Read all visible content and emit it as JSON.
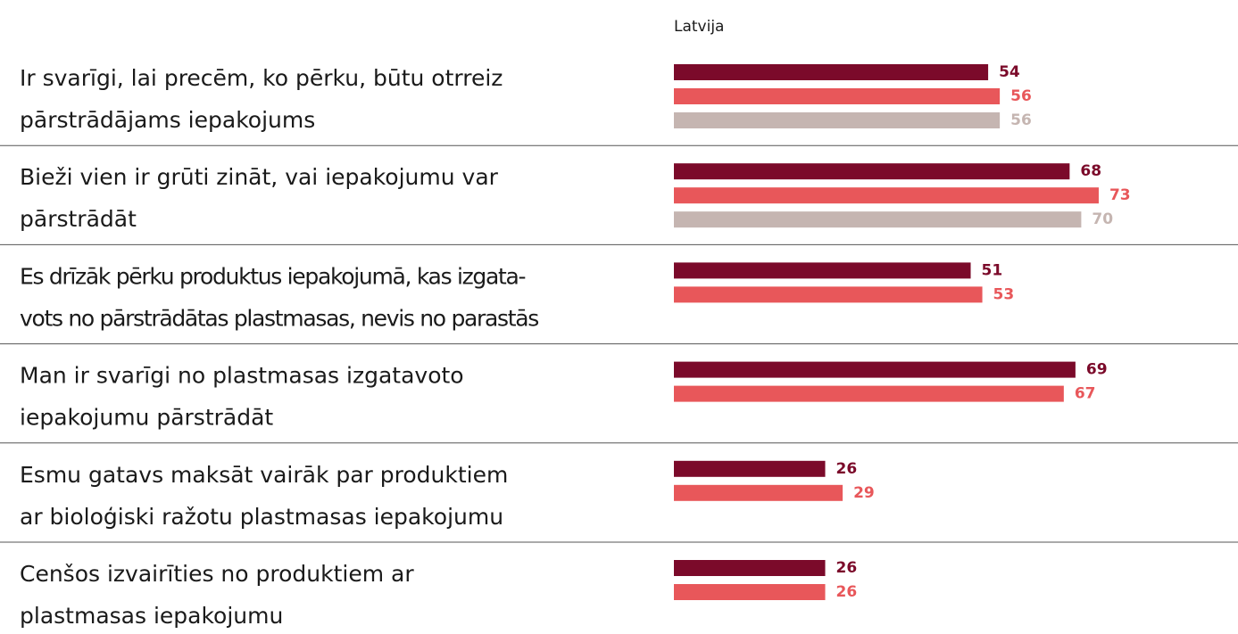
{
  "chart_data": {
    "type": "bar",
    "orientation": "horizontal",
    "subtitle": "Latvija",
    "categories": [
      [
        "Ir svarīgi, lai precēm, ko pērku, būtu otrreiz",
        "pārstrādājams iepakojums"
      ],
      [
        "Bieži vien ir grūti zināt, vai iepakojumu var",
        "pārstrādāt"
      ],
      [
        "Es drīzāk pērku produktus iepakojumā, kas izgata-",
        "vots no pārstrādātas plastmasas, nevis no parastās"
      ],
      [
        "Man ir svarīgi no plastmasas izgatavoto",
        "iepakojumu pārstrādāt"
      ],
      [
        "Esmu gatavs maksāt vairāk par produktiem",
        "ar bioloģiski ražotu plastmasas iepakojumu"
      ],
      [
        "Cenšos izvairīties no produktiem ar",
        "plastmasas iepakojumu"
      ]
    ],
    "series": [
      {
        "color": "#7b0a2a",
        "values": [
          54,
          68,
          51,
          69,
          26,
          26
        ]
      },
      {
        "color": "#e8575a",
        "values": [
          56,
          73,
          53,
          67,
          29,
          26
        ]
      },
      {
        "color": "#c5b5b1",
        "values": [
          56,
          70,
          null,
          null,
          null,
          null
        ]
      }
    ]
  }
}
